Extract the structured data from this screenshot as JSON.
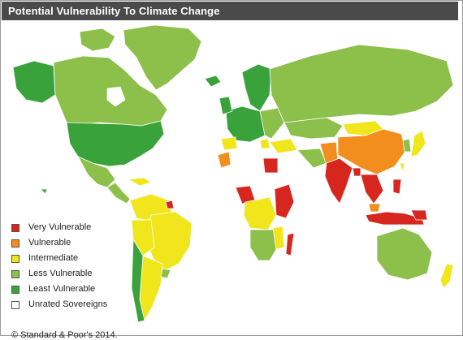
{
  "title": "Potential Vulnerability To Climate Change",
  "legend": [
    {
      "label": "Very Vulnerable",
      "color": "#d7261e"
    },
    {
      "label": "Vulnerable",
      "color": "#f28e1e"
    },
    {
      "label": "Intermediate",
      "color": "#f1e51c"
    },
    {
      "label": "Less Vulnerable",
      "color": "#8cc04b"
    },
    {
      "label": "Least Vulnerable",
      "color": "#3aa23a"
    },
    {
      "label": "Unrated Sovereigns",
      "color": "#ffffff"
    }
  ],
  "copyright": "© Standard & Poor's 2014.",
  "colors": {
    "header": "#4a4a4a",
    "ocean": "#ffffff",
    "outline": "#555555"
  }
}
